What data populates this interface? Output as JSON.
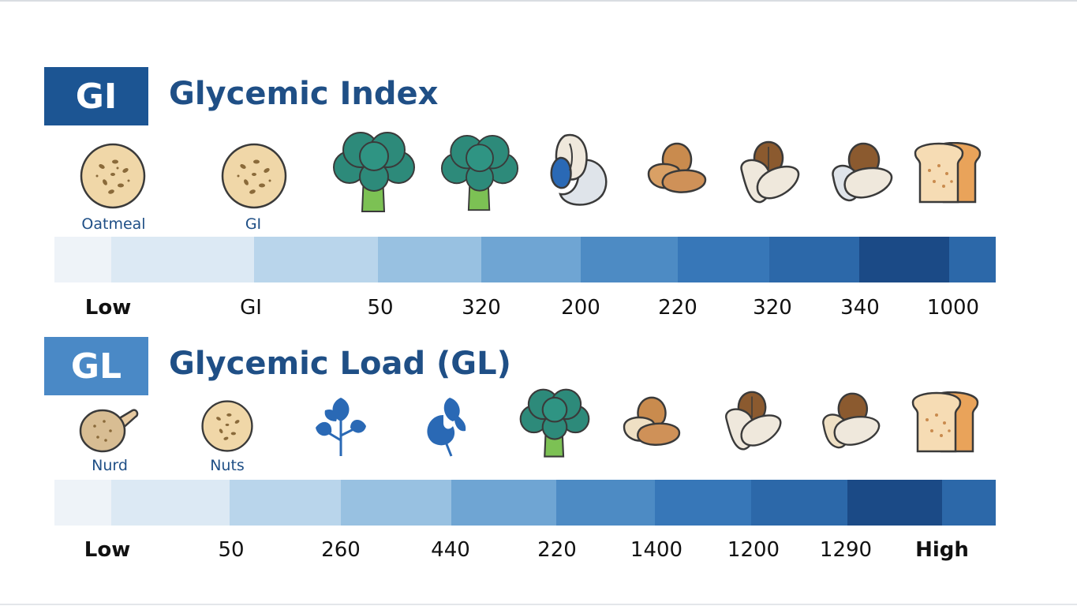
{
  "gi": {
    "badge": "GI",
    "title": "Glycemic Index",
    "badge_color": "#1c5593",
    "food_labels": [
      "Oatmeal",
      "GI"
    ],
    "icons": [
      "oatmeal-icon",
      "oatmeal-icon",
      "broccoli-icon",
      "broccoli-icon",
      "nut-icon",
      "almond-icon",
      "almond-icon",
      "almond-icon",
      "bread-icon"
    ],
    "scale_colors": [
      "#eef3f8",
      "#dce9f4",
      "#b9d5eb",
      "#98c1e1",
      "#6fa5d3",
      "#4d8bc4",
      "#3777b8",
      "#2c68a9",
      "#1b4a86",
      "#2c68a9"
    ],
    "ticks": [
      "Low",
      "GI",
      "50",
      "320",
      "200",
      "220",
      "320",
      "340",
      "1000"
    ]
  },
  "gl": {
    "badge": "GL",
    "title": "Glycemic Load (GL)",
    "badge_color": "#4a89c6",
    "food_labels": [
      "Nurd",
      "Nuts"
    ],
    "icons": [
      "bread-roll-icon",
      "oatmeal-icon",
      "leaf-icon",
      "leaf-icon",
      "broccoli-icon",
      "almond-icon",
      "almond-icon",
      "almond-icon",
      "bread-icon"
    ],
    "scale_colors": [
      "#eef3f8",
      "#dce9f4",
      "#b9d5eb",
      "#98c1e1",
      "#6fa5d3",
      "#4d8bc4",
      "#3777b8",
      "#2c68a9",
      "#1b4a86",
      "#2c68a9"
    ],
    "ticks": [
      "Low",
      "50",
      "260",
      "440",
      "220",
      "1400",
      "1200",
      "1290",
      "High"
    ]
  }
}
